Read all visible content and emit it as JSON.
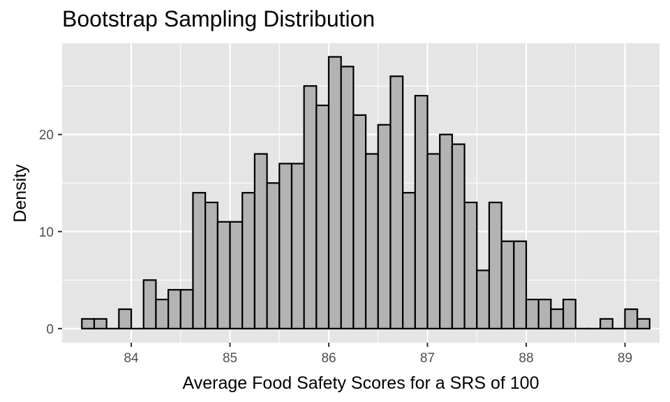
{
  "chart_data": {
    "type": "bar",
    "title": "Bootstrap Sampling Distribution",
    "xlabel": "Average Food Safety Scores for a SRS of 100",
    "ylabel": "Density",
    "bins": {
      "start": 83.5,
      "width": 0.125,
      "counts": [
        1,
        1,
        0,
        2,
        0,
        5,
        3,
        4,
        4,
        14,
        13,
        11,
        11,
        14,
        18,
        15,
        17,
        17,
        25,
        23,
        28,
        27,
        22,
        18,
        21,
        26,
        14,
        24,
        18,
        20,
        19,
        13,
        6,
        13,
        9,
        9,
        3,
        3,
        2,
        3,
        0,
        0,
        1,
        0,
        2,
        1
      ]
    },
    "xlim": [
      83.3,
      89.35
    ],
    "ylim": [
      -1.45,
      29.4
    ],
    "xticks": [
      "84",
      "85",
      "86",
      "87",
      "88",
      "89"
    ],
    "yticks": [
      "0",
      "10",
      "20"
    ],
    "colors": {
      "panel": "#e5e5e5",
      "grid": "#ffffff",
      "bar_fill": "#b3b3b3",
      "bar_stroke": "#000000",
      "tick_text": "#4d4d4d"
    },
    "grid": true
  }
}
